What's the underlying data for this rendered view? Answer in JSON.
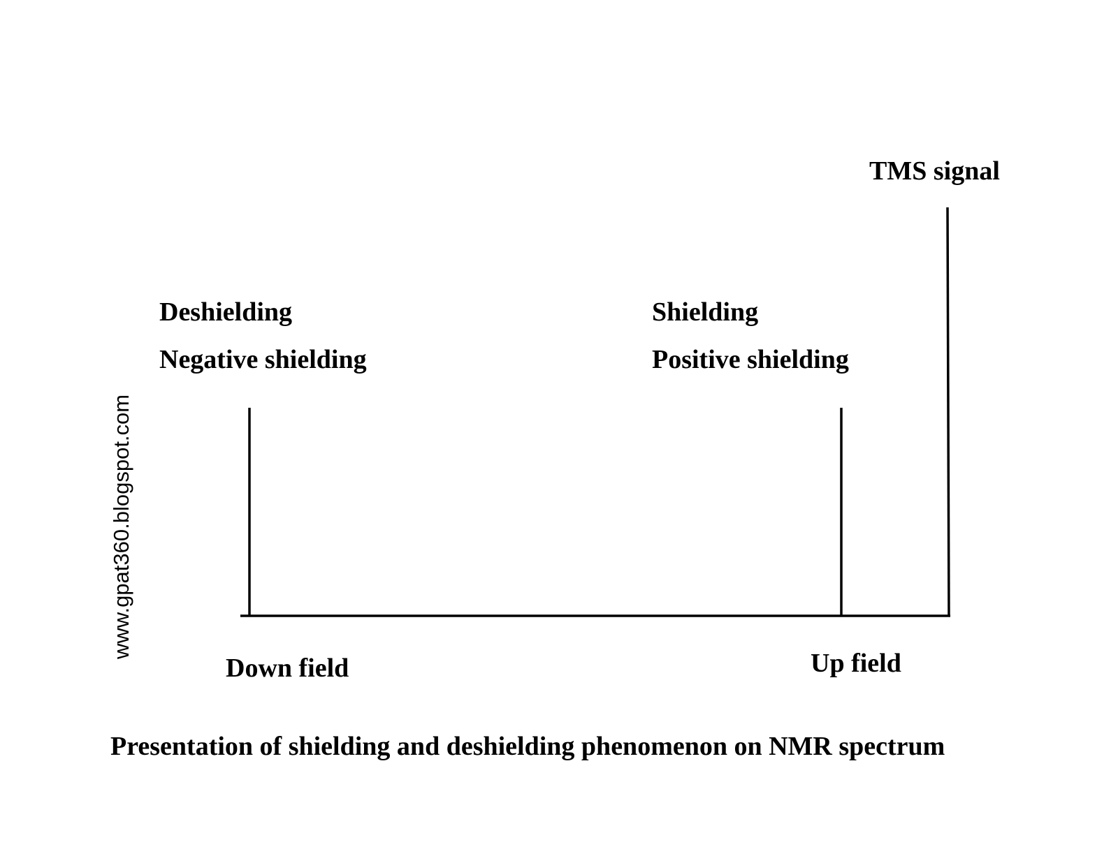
{
  "labels": {
    "tms_signal": "TMS signal",
    "deshielding": "Deshielding",
    "negative_shielding": "Negative shielding",
    "shielding": "Shielding",
    "positive_shielding": "Positive shielding",
    "down_field": "Down field",
    "up_field": "Up field"
  },
  "caption": "Presentation of shielding and deshielding phenomenon on NMR spectrum",
  "watermark": "www.gpat360.blogspot.com",
  "peaks": [
    {
      "name": "deshielded-peak",
      "relative_height": 0.51
    },
    {
      "name": "shielded-peak",
      "relative_height": 0.51
    },
    {
      "name": "tms-peak",
      "relative_height": 1.0
    }
  ]
}
